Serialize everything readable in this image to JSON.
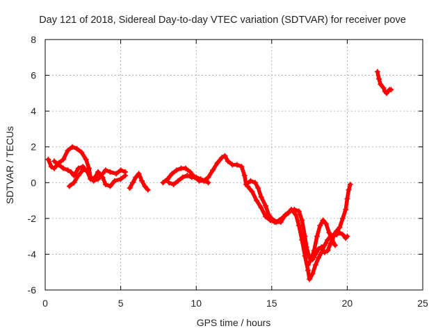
{
  "chart_data": {
    "type": "scatter",
    "title": "Day 121 of 2018, Sidereal Day-to-day VTEC variation (SDTVAR) for receiver pove",
    "xlabel": "GPS time / hours",
    "ylabel": "SDTVAR / TECUs",
    "xlim": [
      0,
      25
    ],
    "ylim": [
      -6,
      8
    ],
    "xticks": [
      "0",
      "5",
      "10",
      "15",
      "20",
      "25"
    ],
    "yticks": [
      "-6",
      "-4",
      "-2",
      "0",
      "2",
      "4",
      "6",
      "8"
    ],
    "grid": true,
    "marker": "plus",
    "color": "#ff0000",
    "series": [
      {
        "points": [
          [
            0.2,
            1.3
          ],
          [
            0.4,
            0.9
          ],
          [
            0.6,
            0.8
          ],
          [
            0.9,
            1.1
          ],
          [
            1.2,
            1.3
          ],
          [
            1.5,
            1.8
          ],
          [
            1.8,
            2.0
          ],
          [
            2.1,
            1.9
          ],
          [
            2.4,
            1.7
          ],
          [
            2.7,
            1.3
          ],
          [
            2.9,
            0.8
          ],
          [
            3.0,
            0.3
          ],
          [
            3.2,
            0.1
          ],
          [
            3.5,
            0.2
          ],
          [
            3.8,
            0.5
          ],
          [
            4.0,
            0.7
          ],
          [
            4.3,
            0.6
          ],
          [
            4.7,
            0.5
          ],
          [
            5.0,
            0.7
          ],
          [
            5.3,
            0.6
          ]
        ]
      },
      {
        "points": [
          [
            0.6,
            1.2
          ],
          [
            0.9,
            1.0
          ],
          [
            1.2,
            0.8
          ],
          [
            1.5,
            0.7
          ],
          [
            1.7,
            0.6
          ],
          [
            1.9,
            0.4
          ],
          [
            2.2,
            0.8
          ],
          [
            2.5,
            0.9
          ],
          [
            2.8,
            0.6
          ],
          [
            3.0,
            0.2
          ],
          [
            3.3,
            0.3
          ],
          [
            3.5,
            0.6
          ],
          [
            3.8,
            0.3
          ],
          [
            4.0,
            -0.1
          ],
          [
            4.3,
            -0.2
          ],
          [
            4.6,
            0.1
          ],
          [
            5.0,
            0.2
          ],
          [
            5.3,
            0.4
          ]
        ]
      },
      {
        "points": [
          [
            1.6,
            -0.2
          ],
          [
            1.9,
            0.0
          ],
          [
            2.2,
            0.4
          ],
          [
            2.5,
            0.7
          ],
          [
            2.8,
            0.7
          ]
        ]
      },
      {
        "points": [
          [
            5.6,
            -0.3
          ],
          [
            5.8,
            0.0
          ],
          [
            6.0,
            0.3
          ],
          [
            6.2,
            0.5
          ],
          [
            6.4,
            0.1
          ],
          [
            6.6,
            -0.2
          ],
          [
            6.8,
            -0.4
          ]
        ]
      },
      {
        "points": [
          [
            7.8,
            0.0
          ],
          [
            8.1,
            0.2
          ],
          [
            8.4,
            0.5
          ],
          [
            8.7,
            0.7
          ],
          [
            9.0,
            0.8
          ],
          [
            9.3,
            0.8
          ],
          [
            9.6,
            0.6
          ],
          [
            9.9,
            0.3
          ],
          [
            10.2,
            0.1
          ],
          [
            10.5,
            0.1
          ],
          [
            10.8,
            0.3
          ],
          [
            11.1,
            0.7
          ],
          [
            11.4,
            1.1
          ],
          [
            11.7,
            1.4
          ],
          [
            11.9,
            1.5
          ],
          [
            12.1,
            1.2
          ],
          [
            12.4,
            1.0
          ],
          [
            12.7,
            1.0
          ],
          [
            13.0,
            0.9
          ],
          [
            13.2,
            0.4
          ],
          [
            13.3,
            -0.1
          ],
          [
            13.6,
            0.1
          ],
          [
            13.9,
            0.0
          ],
          [
            14.1,
            -0.3
          ],
          [
            14.3,
            -0.8
          ],
          [
            14.6,
            -1.3
          ],
          [
            14.8,
            -1.8
          ],
          [
            15.0,
            -2.0
          ],
          [
            15.3,
            -2.2
          ],
          [
            15.6,
            -2.2
          ],
          [
            15.9,
            -1.8
          ],
          [
            16.2,
            -1.6
          ],
          [
            16.5,
            -1.5
          ],
          [
            16.8,
            -1.6
          ],
          [
            17.0,
            -2.1
          ],
          [
            17.2,
            -3.0
          ],
          [
            17.3,
            -3.6
          ],
          [
            17.5,
            -4.2
          ],
          [
            17.7,
            -4.3
          ],
          [
            17.9,
            -4.0
          ],
          [
            18.1,
            -3.7
          ],
          [
            18.3,
            -3.6
          ],
          [
            18.5,
            -3.9
          ],
          [
            18.7,
            -3.8
          ],
          [
            18.9,
            -3.4
          ],
          [
            19.1,
            -3.0
          ],
          [
            19.3,
            -2.7
          ],
          [
            19.5,
            -2.5
          ],
          [
            19.7,
            -2.0
          ],
          [
            19.9,
            -1.5
          ],
          [
            20.0,
            -0.9
          ],
          [
            20.1,
            -0.4
          ],
          [
            20.2,
            -0.1
          ]
        ]
      },
      {
        "points": [
          [
            8.2,
            0.0
          ],
          [
            8.5,
            -0.1
          ],
          [
            8.8,
            0.1
          ],
          [
            9.1,
            0.3
          ],
          [
            9.4,
            0.4
          ],
          [
            9.7,
            0.3
          ],
          [
            10.0,
            0.3
          ],
          [
            10.3,
            0.2
          ],
          [
            10.6,
            0.1
          ],
          [
            10.8,
            0.0
          ]
        ]
      },
      {
        "points": [
          [
            13.4,
            -0.2
          ],
          [
            13.7,
            -0.5
          ],
          [
            14.0,
            -1.0
          ],
          [
            14.3,
            -1.4
          ],
          [
            14.6,
            -1.9
          ],
          [
            14.9,
            -2.1
          ],
          [
            15.2,
            -2.2
          ],
          [
            15.5,
            -2.1
          ],
          [
            15.8,
            -1.9
          ],
          [
            16.1,
            -1.7
          ],
          [
            16.3,
            -1.5
          ],
          [
            16.6,
            -1.8
          ],
          [
            16.8,
            -2.4
          ],
          [
            17.0,
            -3.2
          ],
          [
            17.2,
            -4.1
          ],
          [
            17.4,
            -4.9
          ],
          [
            17.5,
            -5.4
          ],
          [
            17.7,
            -5.1
          ],
          [
            17.9,
            -4.6
          ],
          [
            18.1,
            -4.2
          ],
          [
            18.3,
            -3.9
          ],
          [
            18.5,
            -3.5
          ],
          [
            18.7,
            -3.2
          ],
          [
            18.9,
            -3.0
          ],
          [
            19.1,
            -2.9
          ],
          [
            19.3,
            -2.9
          ],
          [
            19.5,
            -2.8
          ],
          [
            19.7,
            -2.9
          ],
          [
            19.9,
            -3.1
          ],
          [
            20.0,
            -3.0
          ]
        ]
      },
      {
        "points": [
          [
            17.4,
            -4.6
          ],
          [
            17.6,
            -4.3
          ],
          [
            17.8,
            -3.8
          ],
          [
            18.0,
            -3.0
          ],
          [
            18.2,
            -2.4
          ],
          [
            18.4,
            -2.1
          ],
          [
            18.6,
            -2.3
          ],
          [
            18.8,
            -2.8
          ],
          [
            19.0,
            -3.2
          ],
          [
            19.2,
            -3.5
          ]
        ]
      },
      {
        "points": [
          [
            22.0,
            6.2
          ],
          [
            22.1,
            5.8
          ],
          [
            22.2,
            5.5
          ],
          [
            22.4,
            5.3
          ],
          [
            22.5,
            5.1
          ],
          [
            22.6,
            5.0
          ],
          [
            22.7,
            5.1
          ],
          [
            22.8,
            5.2
          ],
          [
            22.9,
            5.2
          ]
        ]
      }
    ]
  }
}
